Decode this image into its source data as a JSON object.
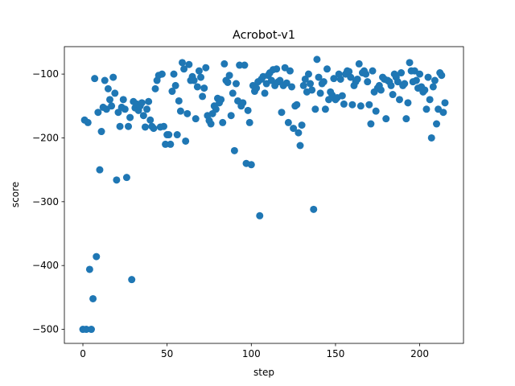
{
  "chart_data": {
    "type": "scatter",
    "title": "Acrobot-v1",
    "xlabel": "step",
    "ylabel": "score",
    "xlim": [
      -11,
      226
    ],
    "ylim": [
      -522,
      -57
    ],
    "xticks": [
      0,
      50,
      100,
      150,
      200
    ],
    "yticks": [
      -500,
      -400,
      -300,
      -200,
      -100
    ],
    "grid": false,
    "marker_color": "#1f77b4",
    "x": [
      0,
      1,
      2,
      3,
      4,
      5,
      6,
      7,
      8,
      9,
      10,
      11,
      12,
      13,
      14,
      15,
      16,
      17,
      18,
      19,
      20,
      21,
      22,
      23,
      24,
      25,
      26,
      27,
      28,
      29,
      30,
      31,
      32,
      33,
      34,
      35,
      36,
      37,
      38,
      39,
      40,
      41,
      42,
      43,
      44,
      45,
      46,
      47,
      48,
      49,
      50,
      51,
      52,
      53,
      54,
      55,
      56,
      57,
      58,
      59,
      60,
      61,
      62,
      63,
      64,
      65,
      66,
      67,
      68,
      69,
      70,
      71,
      72,
      73,
      74,
      75,
      76,
      77,
      78,
      79,
      80,
      81,
      82,
      83,
      84,
      85,
      86,
      87,
      88,
      89,
      90,
      91,
      92,
      93,
      94,
      95,
      96,
      97,
      98,
      99,
      100,
      101,
      102,
      103,
      104,
      105,
      106,
      107,
      108,
      109,
      110,
      111,
      112,
      113,
      114,
      115,
      116,
      117,
      118,
      119,
      120,
      121,
      122,
      123,
      124,
      125,
      126,
      127,
      128,
      129,
      130,
      131,
      132,
      133,
      134,
      135,
      136,
      137,
      138,
      139,
      140,
      141,
      142,
      143,
      144,
      145,
      146,
      147,
      148,
      149,
      150,
      151,
      152,
      153,
      154,
      155,
      156,
      157,
      158,
      159,
      160,
      161,
      162,
      163,
      164,
      165,
      166,
      167,
      168,
      169,
      170,
      171,
      172,
      173,
      174,
      175,
      176,
      177,
      178,
      179,
      180,
      181,
      182,
      183,
      184,
      185,
      186,
      187,
      188,
      189,
      190,
      191,
      192,
      193,
      194,
      195,
      196,
      197,
      198,
      199,
      200,
      201,
      202,
      203,
      204,
      205,
      206,
      207,
      208,
      209,
      210,
      211,
      212,
      213,
      214,
      215
    ],
    "y": [
      -500,
      -172,
      -500,
      -176,
      -406,
      -500,
      -452,
      -107,
      -386,
      -160,
      -250,
      -190,
      -152,
      -110,
      -155,
      -123,
      -140,
      -150,
      -105,
      -130,
      -266,
      -160,
      -182,
      -152,
      -140,
      -155,
      -262,
      -182,
      -168,
      -422,
      -143,
      -153,
      -147,
      -157,
      -150,
      -145,
      -165,
      -183,
      -155,
      -143,
      -172,
      -182,
      -185,
      -123,
      -110,
      -102,
      -183,
      -100,
      -182,
      -210,
      -195,
      -195,
      -210,
      -127,
      -100,
      -118,
      -195,
      -142,
      -158,
      -82,
      -92,
      -205,
      -162,
      -85,
      -110,
      -104,
      -110,
      -170,
      -120,
      -95,
      -105,
      -135,
      -122,
      -90,
      -165,
      -173,
      -178,
      -162,
      -150,
      -155,
      -138,
      -145,
      -140,
      -176,
      -84,
      -110,
      -113,
      -102,
      -165,
      -130,
      -220,
      -115,
      -142,
      -86,
      -150,
      -145,
      -86,
      -240,
      -157,
      -176,
      -242,
      -118,
      -127,
      -122,
      -112,
      -322,
      -108,
      -104,
      -130,
      -115,
      -102,
      -98,
      -110,
      -93,
      -118,
      -92,
      -112,
      -110,
      -160,
      -118,
      -90,
      -114,
      -176,
      -95,
      -120,
      -185,
      -150,
      -148,
      -192,
      -212,
      -180,
      -118,
      -108,
      -128,
      -100,
      -115,
      -125,
      -312,
      -155,
      -77,
      -105,
      -130,
      -115,
      -112,
      -155,
      -92,
      -140,
      -128,
      -133,
      -107,
      -140,
      -137,
      -100,
      -108,
      -134,
      -147,
      -100,
      -95,
      -96,
      -105,
      -148,
      -118,
      -112,
      -108,
      -84,
      -150,
      -98,
      -95,
      -100,
      -112,
      -148,
      -178,
      -95,
      -128,
      -158,
      -122,
      -118,
      -125,
      -105,
      -108,
      -170,
      -110,
      -112,
      -118,
      -132,
      -100,
      -105,
      -112,
      -140,
      -98,
      -118,
      -115,
      -170,
      -145,
      -82,
      -95,
      -112,
      -95,
      -110,
      -122,
      -100,
      -120,
      -128,
      -125,
      -155,
      -105,
      -140,
      -200,
      -120,
      -110,
      -178,
      -155,
      -98,
      -102,
      -160,
      -145
    ]
  }
}
